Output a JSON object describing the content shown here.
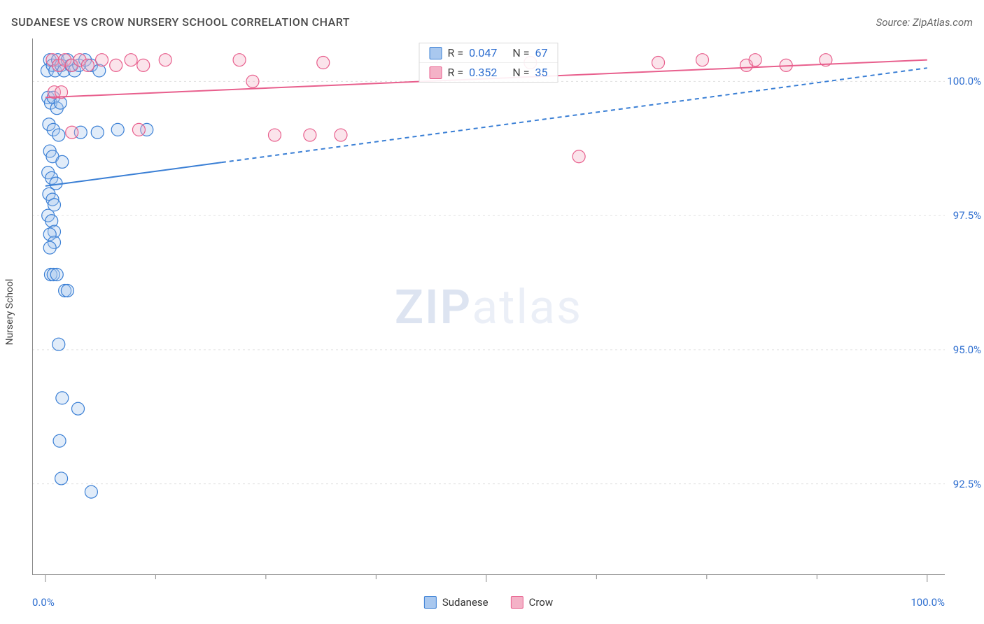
{
  "header": {
    "title": "SUDANESE VS CROW NURSERY SCHOOL CORRELATION CHART",
    "source": "Source: ZipAtlas.com"
  },
  "watermark": {
    "bold": "ZIP",
    "light": "atlas"
  },
  "chart": {
    "type": "scatter",
    "ylabel": "Nursery School",
    "xlim_pct": [
      -1.5,
      102
    ],
    "ylim_pct": [
      90.8,
      100.8
    ],
    "x_ticks_minor_pct": [
      0,
      12.5,
      25,
      37.5,
      50,
      62.5,
      75,
      87.5,
      100
    ],
    "x_ticks_major_pct": [
      0,
      50,
      100
    ],
    "x_min_label": "0.0%",
    "x_max_label": "100.0%",
    "y_grid_pct": [
      92.5,
      95.0,
      97.5,
      100.0
    ],
    "y_grid_labels": [
      "92.5%",
      "95.0%",
      "97.5%",
      "100.0%"
    ],
    "grid_color": "#e0e0e0",
    "axis_color": "#888888",
    "tick_color": "#888888",
    "background_color": "#ffffff",
    "marker_radius": 9,
    "marker_stroke_width": 1.2,
    "marker_fill_opacity": 0.35,
    "trend_line_width": 2,
    "trend_dash": "6,5",
    "series": [
      {
        "id": "sudanese",
        "label": "Sudanese",
        "color": "#3a7fd5",
        "fill": "#a9c8ef",
        "stats": {
          "R": "0.047",
          "N": "67"
        },
        "points": [
          [
            0.2,
            100.2
          ],
          [
            0.5,
            100.4
          ],
          [
            0.8,
            100.3
          ],
          [
            1.1,
            100.2
          ],
          [
            1.4,
            100.4
          ],
          [
            1.8,
            100.3
          ],
          [
            2.1,
            100.2
          ],
          [
            2.5,
            100.4
          ],
          [
            2.9,
            100.3
          ],
          [
            3.3,
            100.2
          ],
          [
            3.8,
            100.3
          ],
          [
            4.5,
            100.4
          ],
          [
            5.2,
            100.3
          ],
          [
            6.1,
            100.2
          ],
          [
            0.3,
            99.7
          ],
          [
            0.6,
            99.6
          ],
          [
            0.9,
            99.7
          ],
          [
            1.3,
            99.5
          ],
          [
            1.7,
            99.6
          ],
          [
            0.4,
            99.2
          ],
          [
            0.9,
            99.1
          ],
          [
            1.5,
            99.0
          ],
          [
            4.0,
            99.05
          ],
          [
            5.9,
            99.05
          ],
          [
            8.2,
            99.1
          ],
          [
            11.5,
            99.1
          ],
          [
            0.5,
            98.7
          ],
          [
            0.8,
            98.6
          ],
          [
            1.9,
            98.5
          ],
          [
            0.3,
            98.3
          ],
          [
            0.7,
            98.2
          ],
          [
            1.2,
            98.1
          ],
          [
            0.4,
            97.9
          ],
          [
            0.8,
            97.8
          ],
          [
            1.0,
            97.7
          ],
          [
            0.3,
            97.5
          ],
          [
            0.7,
            97.4
          ],
          [
            1.0,
            97.2
          ],
          [
            0.5,
            97.15
          ],
          [
            1.0,
            97.0
          ],
          [
            0.5,
            96.9
          ],
          [
            0.6,
            96.4
          ],
          [
            0.9,
            96.4
          ],
          [
            1.3,
            96.4
          ],
          [
            2.2,
            96.1
          ],
          [
            2.5,
            96.1
          ],
          [
            1.5,
            95.1
          ],
          [
            1.9,
            94.1
          ],
          [
            3.7,
            93.9
          ],
          [
            1.6,
            93.3
          ],
          [
            1.8,
            92.6
          ],
          [
            5.2,
            92.35
          ]
        ],
        "trend": {
          "x1_pct": 0.0,
          "y1_pct": 98.05,
          "x2_pct": 100.0,
          "y2_pct": 100.25,
          "solid_until_x_pct": 20.0
        }
      },
      {
        "id": "crow",
        "label": "Crow",
        "color": "#e85f8d",
        "fill": "#f4b2c7",
        "stats": {
          "R": "0.352",
          "N": "35"
        },
        "points": [
          [
            0.8,
            100.4
          ],
          [
            1.5,
            100.3
          ],
          [
            2.2,
            100.4
          ],
          [
            3.0,
            100.3
          ],
          [
            3.9,
            100.4
          ],
          [
            4.8,
            100.3
          ],
          [
            6.4,
            100.4
          ],
          [
            8.0,
            100.3
          ],
          [
            9.7,
            100.4
          ],
          [
            11.1,
            100.3
          ],
          [
            13.6,
            100.4
          ],
          [
            22.0,
            100.4
          ],
          [
            31.5,
            100.35
          ],
          [
            55.0,
            100.35
          ],
          [
            69.5,
            100.35
          ],
          [
            74.5,
            100.4
          ],
          [
            79.5,
            100.3
          ],
          [
            80.5,
            100.4
          ],
          [
            84.0,
            100.3
          ],
          [
            88.5,
            100.4
          ],
          [
            1.0,
            99.8
          ],
          [
            1.8,
            99.8
          ],
          [
            3.0,
            99.05
          ],
          [
            10.6,
            99.1
          ],
          [
            23.5,
            100.0
          ],
          [
            26.0,
            99.0
          ],
          [
            30.0,
            99.0
          ],
          [
            33.5,
            99.0
          ],
          [
            60.5,
            98.6
          ]
        ],
        "trend": {
          "x1_pct": 0.0,
          "y1_pct": 99.7,
          "x2_pct": 100.0,
          "y2_pct": 100.4,
          "solid_until_x_pct": 100.0
        }
      }
    ],
    "legend_bottom": [
      {
        "label": "Sudanese",
        "fill": "#a9c8ef",
        "stroke": "#3a7fd5"
      },
      {
        "label": "Crow",
        "fill": "#f4b2c7",
        "stroke": "#e85f8d"
      }
    ],
    "stat_box_rows": [
      {
        "fill": "#a9c8ef",
        "stroke": "#3a7fd5",
        "R": "0.047",
        "N": "67"
      },
      {
        "fill": "#f4b2c7",
        "stroke": "#e85f8d",
        "R": "0.352",
        "N": "35"
      }
    ]
  }
}
